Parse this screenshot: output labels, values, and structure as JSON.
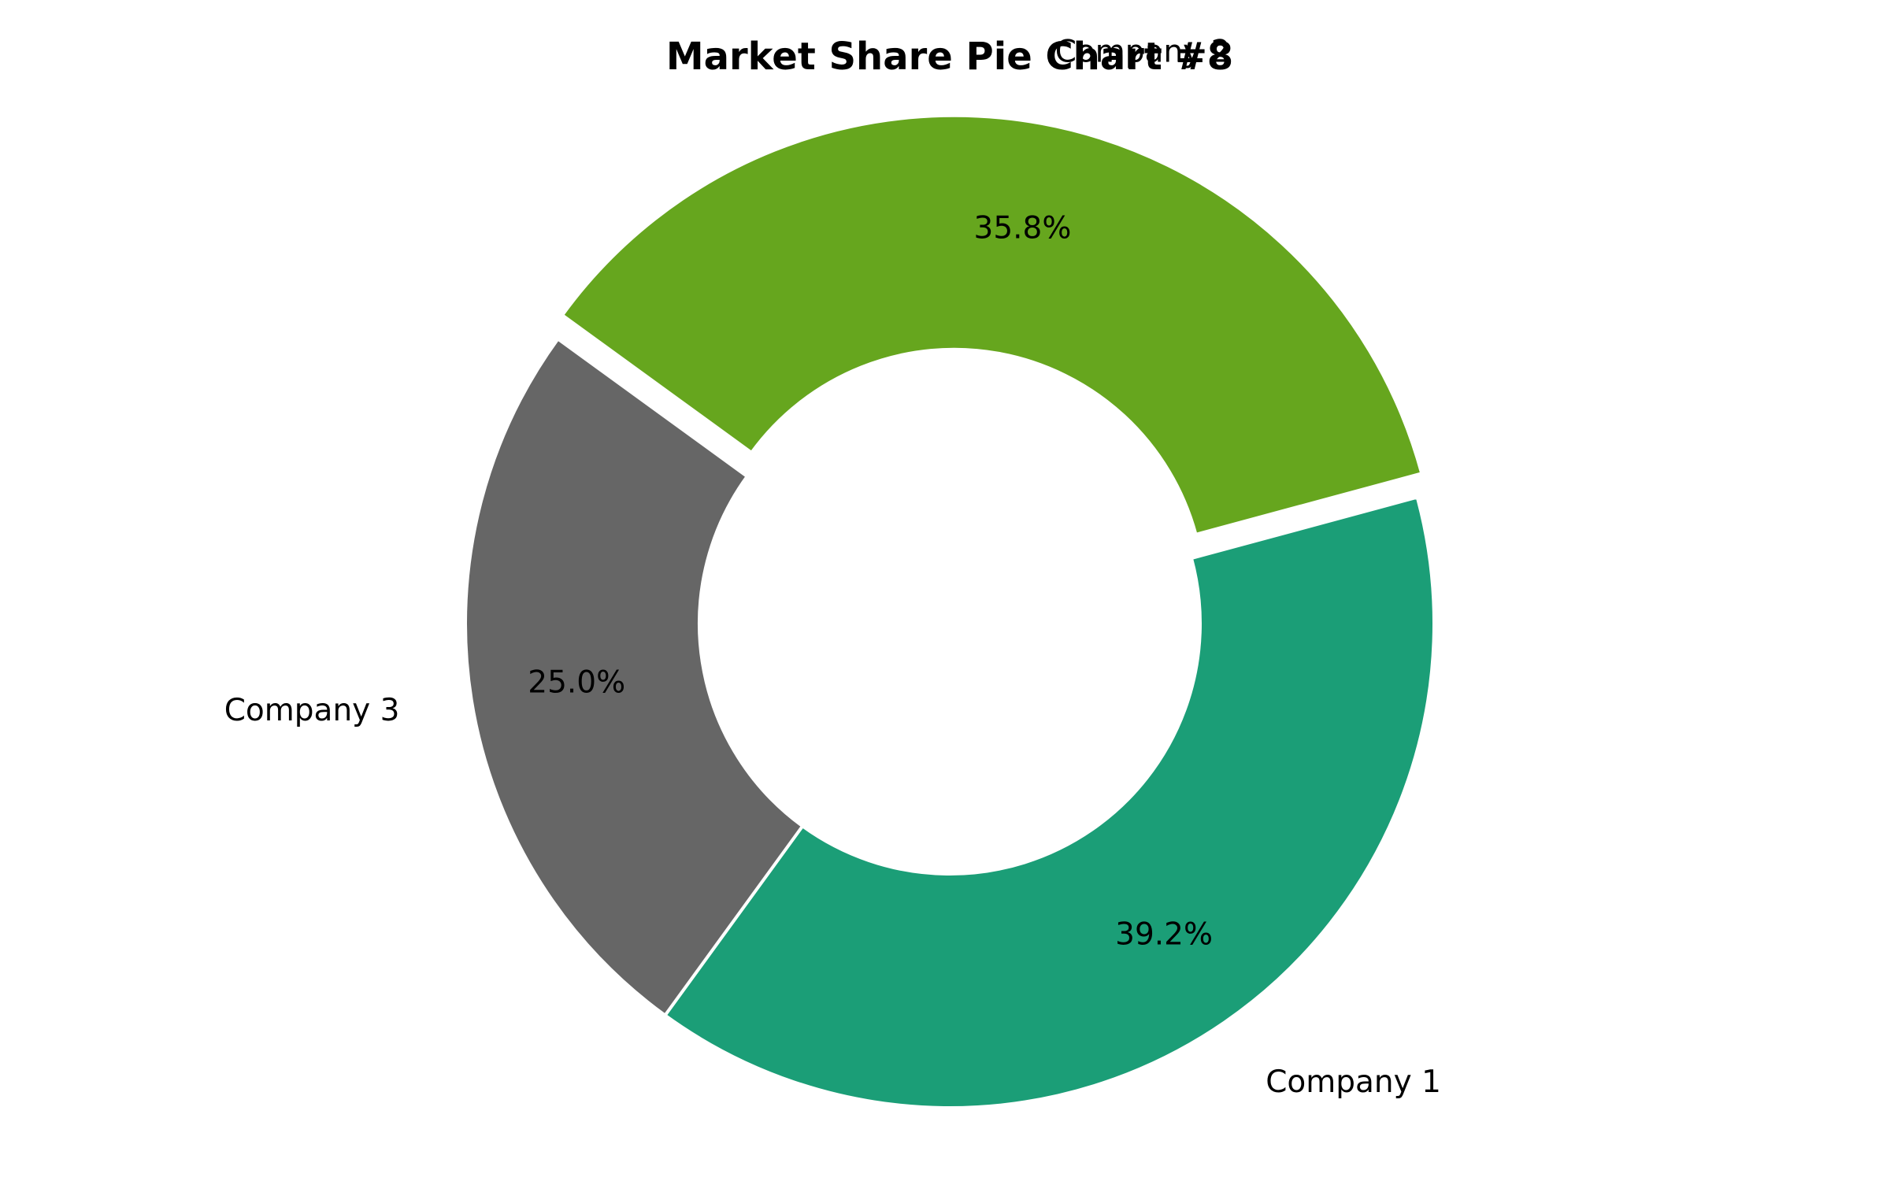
{
  "chart_data": {
    "type": "pie",
    "donut": true,
    "title": "Market Share Pie Chart #8",
    "categories": [
      "Company 1",
      "Company 2",
      "Company 3"
    ],
    "values": [
      39.2,
      35.8,
      25.0
    ],
    "value_labels": [
      "39.2%",
      "35.8%",
      "25.0%"
    ],
    "colors": [
      "#1b9e77",
      "#66a61e",
      "#666666"
    ],
    "exploded": [
      "Company 2"
    ]
  }
}
